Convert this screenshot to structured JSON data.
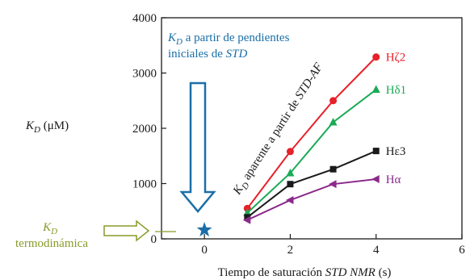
{
  "chart_data": {
    "type": "line",
    "x_label_prefix": "Tiempo de saturación ",
    "x_label_emph": "STD NMR",
    "x_label_suffix": " (s)",
    "y_label_main": "K",
    "y_label_sub": "D",
    "y_label_rest": " (μM)",
    "xlim": [
      -1,
      6
    ],
    "ylim": [
      0,
      4000
    ],
    "x_ticks": [
      0,
      2,
      4,
      6
    ],
    "y_ticks": [
      0,
      1000,
      2000,
      3000,
      4000
    ],
    "grid": false,
    "series": [
      {
        "name": "Hζ2",
        "color": "#e8202a",
        "marker": "circle",
        "x": [
          1,
          2,
          3,
          4
        ],
        "y": [
          550,
          1580,
          2500,
          3290
        ]
      },
      {
        "name": "Hδ1",
        "color": "#1aaa55",
        "marker": "triangle-up",
        "x": [
          1,
          2,
          3,
          4
        ],
        "y": [
          470,
          1190,
          2110,
          2700
        ]
      },
      {
        "name": "Hε3",
        "color": "#1a1a1a",
        "marker": "square",
        "x": [
          1,
          2,
          3,
          4
        ],
        "y": [
          390,
          990,
          1260,
          1590
        ]
      },
      {
        "name": "Hα",
        "color": "#8b2a8b",
        "marker": "triangle-left",
        "x": [
          1,
          2,
          3,
          4
        ],
        "y": [
          340,
          700,
          990,
          1080
        ]
      }
    ],
    "star_point": {
      "x": 0,
      "y": 160,
      "color": "#1a6fa8"
    },
    "annotations": {
      "initial_slopes_line1_k": "K",
      "initial_slopes_line1_sub": "D",
      "initial_slopes_line1_rest": " a partir de pendientes",
      "initial_slopes_line2": "iniciales de ",
      "initial_slopes_line2_emph": "STD",
      "initial_slopes_color": "#1a6fa8",
      "apparent_k": "K",
      "apparent_sub": "D",
      "apparent_rest": " aparente a partir de ",
      "apparent_emph": "STD-AF",
      "thermo_k": "K",
      "thermo_sub": "D",
      "thermo_line2": "termodinámica",
      "thermo_color": "#8a9a2a"
    }
  }
}
